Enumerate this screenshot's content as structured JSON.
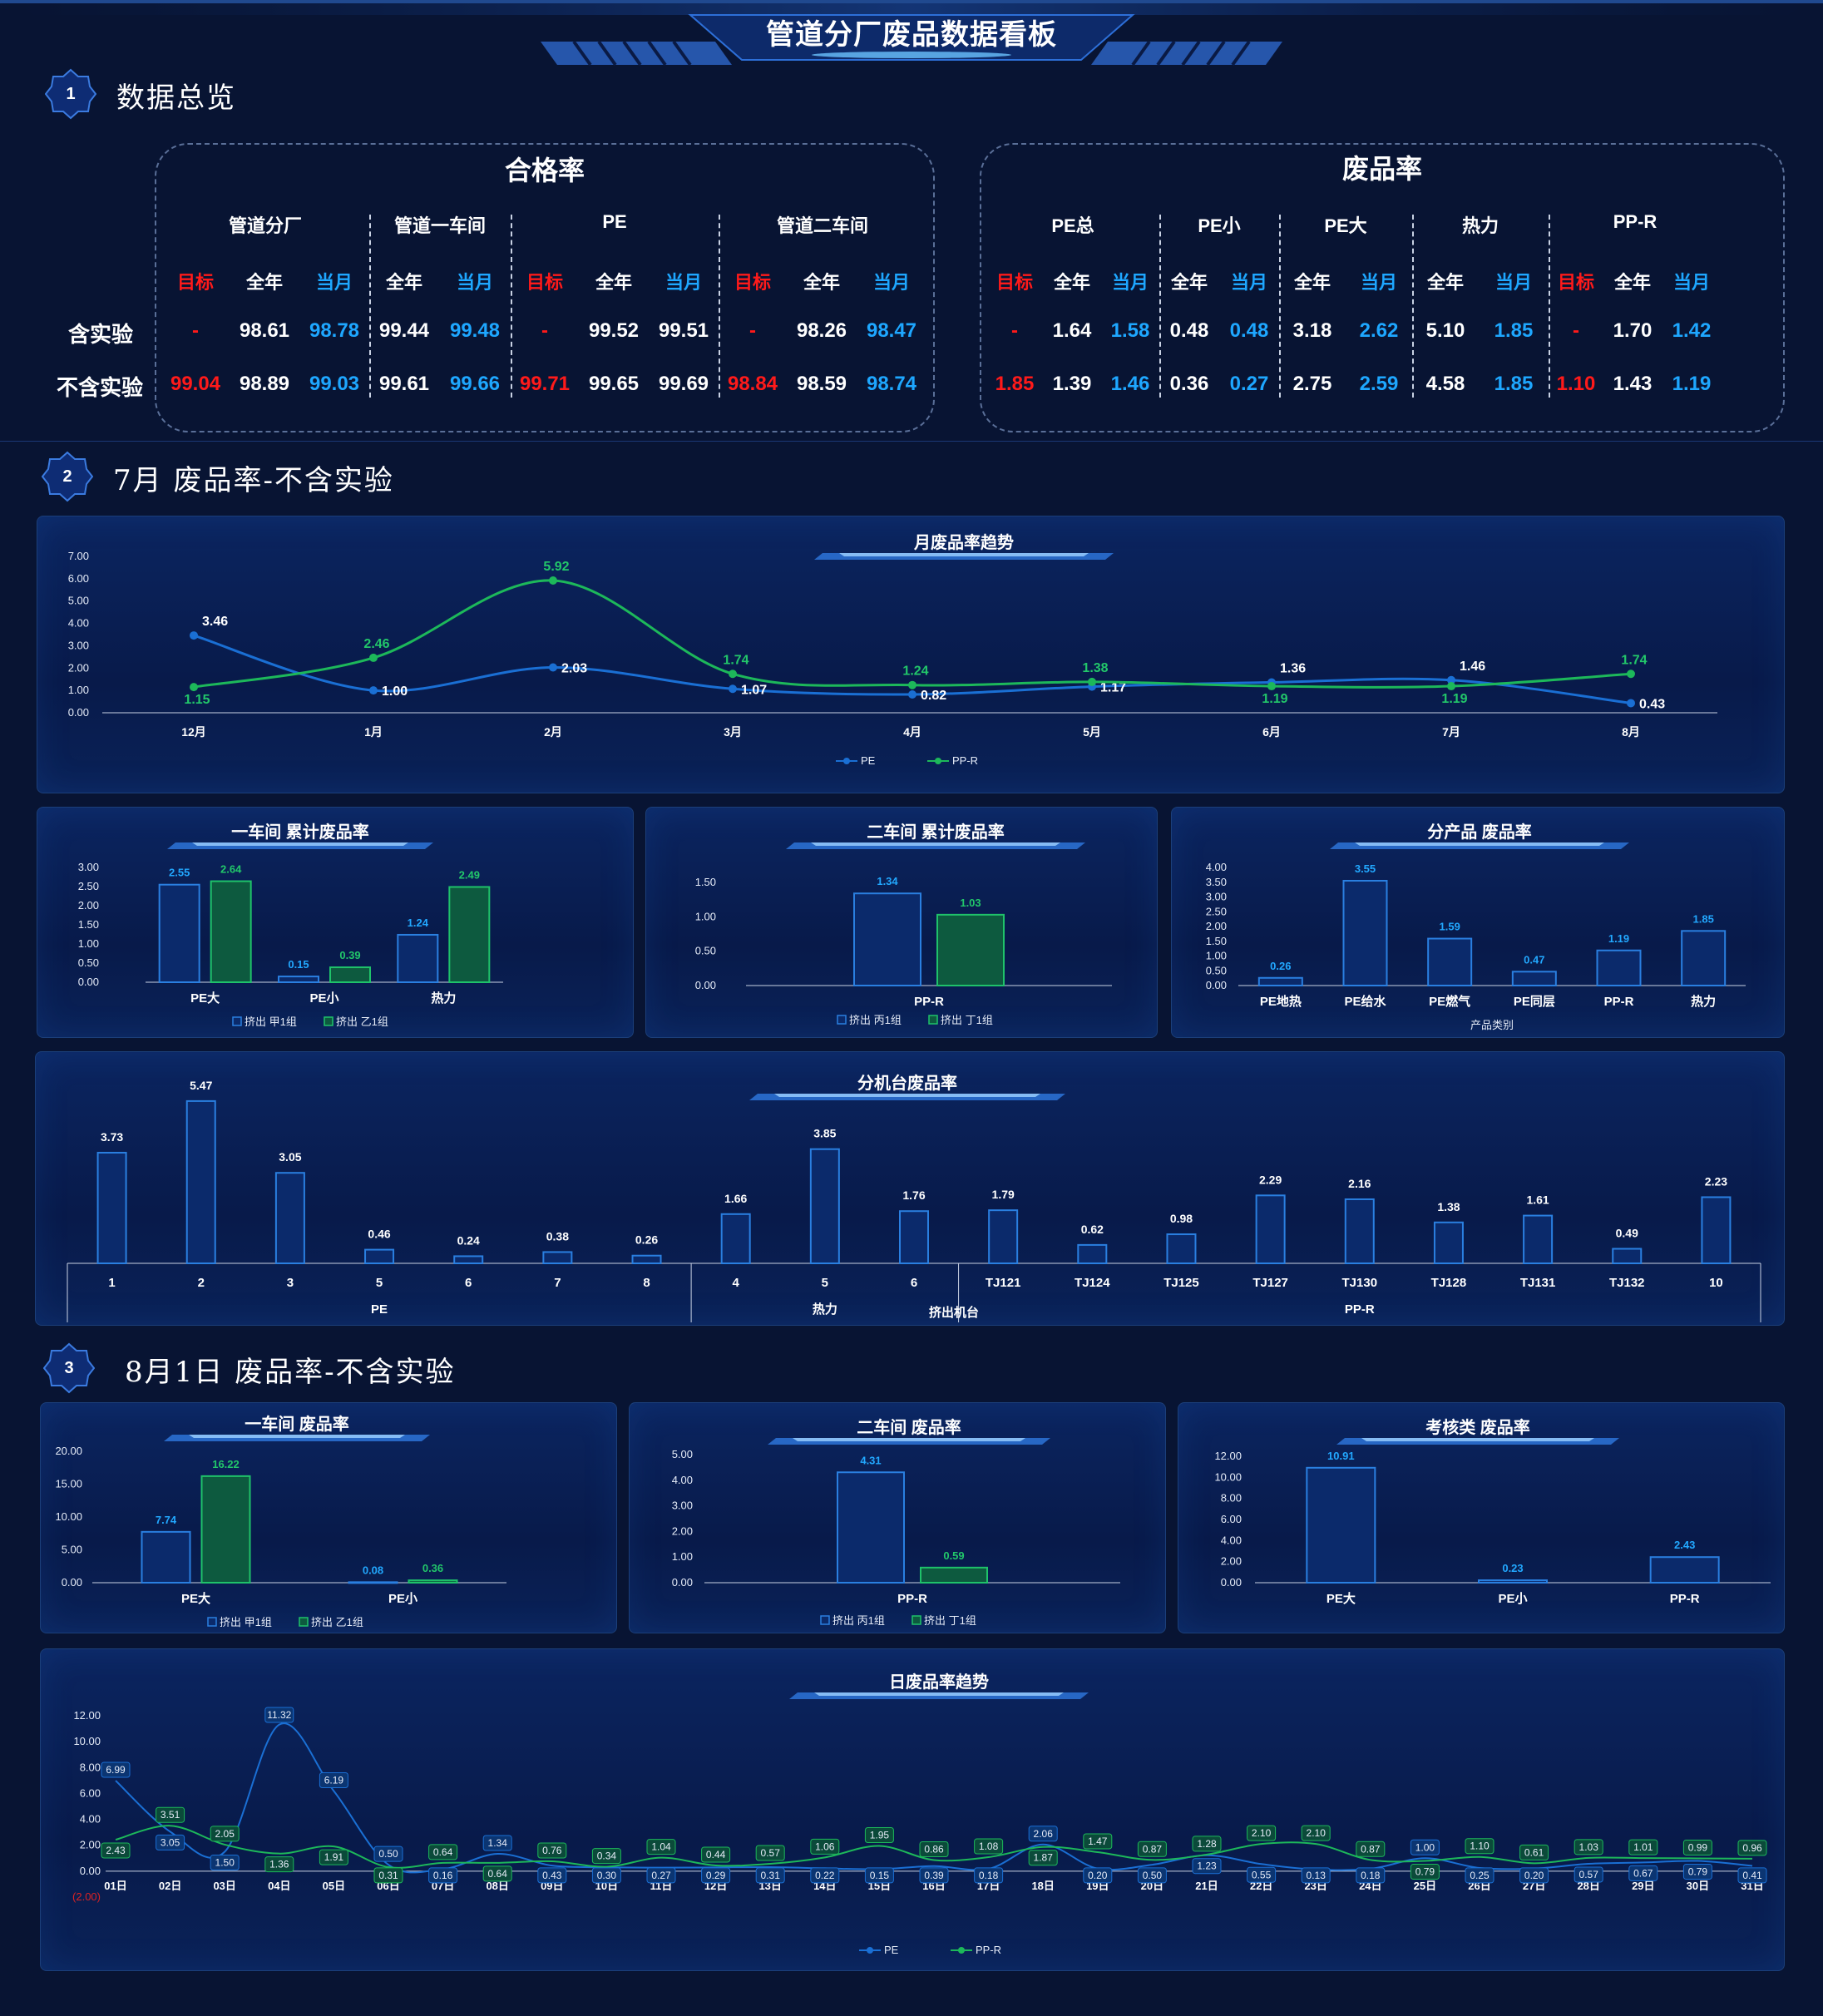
{
  "header": {
    "title": "管道分厂废品数据看板"
  },
  "sections": [
    {
      "num": "1",
      "title": "数据总览"
    },
    {
      "num": "2",
      "title": "7月 废品率-不含实验"
    },
    {
      "num": "3",
      "title": "8月1日  废品率-不含实验"
    }
  ],
  "overview": {
    "row_labels": [
      "含实验",
      "不含实验"
    ],
    "pass_rate": {
      "title": "合格率",
      "groups": [
        {
          "name": "管道分厂",
          "cols": [
            {
              "label": "目标",
              "cls": "red",
              "vals": [
                "-",
                "99.04"
              ]
            },
            {
              "label": "全年",
              "cls": "white",
              "vals": [
                "98.61",
                "98.89"
              ]
            },
            {
              "label": "当月",
              "cls": "blue",
              "vals": [
                "98.78",
                "99.03"
              ]
            }
          ]
        },
        {
          "name": "管道一车间",
          "cols": [
            {
              "label": "全年",
              "cls": "white",
              "vals": [
                "99.44",
                "99.61"
              ]
            },
            {
              "label": "当月",
              "cls": "blue",
              "vals": [
                "99.48",
                "99.66"
              ]
            }
          ]
        },
        {
          "name": "PE",
          "cols": [
            {
              "label": "目标",
              "cls": "red",
              "vals": [
                "-",
                "99.71"
              ]
            },
            {
              "label": "全年",
              "cls": "white",
              "vals": [
                "99.52",
                "99.65"
              ]
            },
            {
              "label": "当月",
              "cls": "white",
              "vals": [
                "99.51",
                "99.69"
              ]
            }
          ]
        },
        {
          "name": "管道二车间",
          "cols": [
            {
              "label": "目标",
              "cls": "red",
              "vals": [
                "-",
                "98.84"
              ]
            },
            {
              "label": "全年",
              "cls": "white",
              "vals": [
                "98.26",
                "98.59"
              ]
            },
            {
              "label": "当月",
              "cls": "blue",
              "vals": [
                "98.47",
                "98.74"
              ]
            }
          ]
        }
      ]
    },
    "scrap_rate": {
      "title": "废品率",
      "groups": [
        {
          "name": "PE总",
          "cols": [
            {
              "label": "目标",
              "cls": "red",
              "vals": [
                "-",
                "1.85"
              ]
            },
            {
              "label": "全年",
              "cls": "white",
              "vals": [
                "1.64",
                "1.39"
              ]
            },
            {
              "label": "当月",
              "cls": "blue",
              "vals": [
                "1.58",
                "1.46"
              ]
            }
          ]
        },
        {
          "name": "PE小",
          "cols": [
            {
              "label": "全年",
              "cls": "white",
              "vals": [
                "0.48",
                "0.36"
              ]
            },
            {
              "label": "当月",
              "cls": "blue",
              "vals": [
                "0.48",
                "0.27"
              ]
            }
          ]
        },
        {
          "name": "PE大",
          "cols": [
            {
              "label": "全年",
              "cls": "white",
              "vals": [
                "3.18",
                "2.75"
              ]
            },
            {
              "label": "当月",
              "cls": "blue",
              "vals": [
                "2.62",
                "2.59"
              ]
            }
          ]
        },
        {
          "name": "热力",
          "cols": [
            {
              "label": "全年",
              "cls": "white",
              "vals": [
                "5.10",
                "4.58"
              ]
            },
            {
              "label": "当月",
              "cls": "blue",
              "vals": [
                "1.85",
                "1.85"
              ]
            }
          ]
        },
        {
          "name": "PP-R",
          "cols": [
            {
              "label": "目标",
              "cls": "red",
              "vals": [
                "-",
                "1.10"
              ]
            },
            {
              "label": "全年",
              "cls": "white",
              "vals": [
                "1.70",
                "1.43"
              ]
            },
            {
              "label": "当月",
              "cls": "blue",
              "vals": [
                "1.42",
                "1.19"
              ]
            }
          ]
        }
      ]
    }
  },
  "colors": {
    "pe": "#1a6fd4",
    "ppr": "#1db85a",
    "bar_blue_fill": "#0b2a6b",
    "bar_blue_stroke": "#2a7fe0",
    "bar_green_fill": "#0d5a3f",
    "bar_green_stroke": "#1fc26a",
    "label_blue": "#22a8ff",
    "label_green": "#22c76a",
    "red": "#ff1a1a"
  },
  "chart_data": [
    {
      "id": "monthly",
      "type": "line",
      "title": "月废品率趋势",
      "categories": [
        "12月",
        "1月",
        "2月",
        "3月",
        "4月",
        "5月",
        "6月",
        "7月",
        "8月"
      ],
      "ylim": [
        0,
        7
      ],
      "yticks": [
        "0.00",
        "1.00",
        "2.00",
        "3.00",
        "4.00",
        "5.00",
        "6.00",
        "7.00"
      ],
      "series": [
        {
          "name": "PE",
          "values": [
            3.46,
            1.0,
            2.03,
            1.07,
            0.82,
            1.17,
            1.36,
            1.46,
            0.43
          ]
        },
        {
          "name": "PP-R",
          "values": [
            1.15,
            2.46,
            5.92,
            1.74,
            1.24,
            1.38,
            1.19,
            1.19,
            1.74
          ]
        }
      ]
    },
    {
      "id": "ws1",
      "type": "bar",
      "title": "一车间 累计废品率",
      "categories": [
        "PE大",
        "PE小",
        "热力"
      ],
      "ylim": [
        0,
        3
      ],
      "yticks": [
        "0.00",
        "0.50",
        "1.00",
        "1.50",
        "2.00",
        "2.50",
        "3.00"
      ],
      "series": [
        {
          "name": "挤出 甲1组",
          "values": [
            2.55,
            0.15,
            1.24
          ]
        },
        {
          "name": "挤出 乙1组",
          "values": [
            2.64,
            0.39,
            2.49
          ]
        }
      ]
    },
    {
      "id": "ws2",
      "type": "bar",
      "title": "二车间 累计废品率",
      "categories": [
        "PP-R"
      ],
      "ylim": [
        0,
        1.5
      ],
      "yticks": [
        "0.00",
        "0.50",
        "1.00",
        "1.50"
      ],
      "series": [
        {
          "name": "挤出 丙1组",
          "values": [
            1.34
          ]
        },
        {
          "name": "挤出 丁1组",
          "values": [
            1.03
          ]
        }
      ]
    },
    {
      "id": "prod",
      "type": "bar",
      "title": "分产品 废品率",
      "xlabel": "产品类别",
      "categories": [
        "PE地热",
        "PE给水",
        "PE燃气",
        "PE同层",
        "PP-R",
        "热力"
      ],
      "ylim": [
        0,
        4
      ],
      "yticks": [
        "0.00",
        "0.50",
        "1.00",
        "1.50",
        "2.00",
        "2.50",
        "3.00",
        "3.50",
        "4.00"
      ],
      "series": [
        {
          "values": [
            0.26,
            3.55,
            1.59,
            0.47,
            1.19,
            1.85
          ]
        }
      ]
    },
    {
      "id": "machine",
      "type": "bar",
      "title": "分机台废品率",
      "xlabel": "挤出机台",
      "groups": [
        {
          "name": "PE",
          "categories": [
            "1",
            "2",
            "3",
            "5",
            "6",
            "7",
            "8"
          ],
          "values": [
            3.73,
            5.47,
            3.05,
            0.46,
            0.24,
            0.38,
            0.26
          ]
        },
        {
          "name": "热力",
          "categories": [
            "4",
            "5",
            "6"
          ],
          "values": [
            1.66,
            3.85,
            1.76
          ]
        },
        {
          "name": "PP-R",
          "categories": [
            "TJ121",
            "TJ124",
            "TJ125",
            "TJ127",
            "TJ130",
            "TJ128",
            "TJ131",
            "TJ132",
            "10"
          ],
          "values": [
            1.79,
            0.62,
            0.98,
            2.29,
            2.16,
            1.38,
            1.61,
            0.49,
            2.23
          ]
        }
      ],
      "ylim": [
        0,
        6
      ]
    },
    {
      "id": "d_ws1",
      "type": "bar",
      "title": "一车间 废品率",
      "categories": [
        "PE大",
        "PE小"
      ],
      "ylim": [
        0,
        20
      ],
      "yticks": [
        "0.00",
        "5.00",
        "10.00",
        "15.00",
        "20.00"
      ],
      "series": [
        {
          "name": "挤出 甲1组",
          "values": [
            7.74,
            0.08
          ]
        },
        {
          "name": "挤出 乙1组",
          "values": [
            16.22,
            0.36
          ]
        }
      ]
    },
    {
      "id": "d_ws2",
      "type": "bar",
      "title": "二车间 废品率",
      "categories": [
        "PP-R"
      ],
      "ylim": [
        0,
        5
      ],
      "yticks": [
        "0.00",
        "1.00",
        "2.00",
        "3.00",
        "4.00",
        "5.00"
      ],
      "series": [
        {
          "name": "挤出 丙1组",
          "values": [
            4.31
          ]
        },
        {
          "name": "挤出 丁1组",
          "values": [
            0.59
          ]
        }
      ]
    },
    {
      "id": "d_kpi",
      "type": "bar",
      "title": "考核类 废品率",
      "categories": [
        "PE大",
        "PE小",
        "PP-R"
      ],
      "ylim": [
        0,
        12
      ],
      "yticks": [
        "0.00",
        "2.00",
        "4.00",
        "6.00",
        "8.00",
        "10.00",
        "12.00"
      ],
      "series": [
        {
          "values": [
            10.91,
            0.23,
            2.43
          ]
        }
      ]
    },
    {
      "id": "daily",
      "type": "line",
      "title": "日废品率趋势",
      "categories": [
        "01日",
        "02日",
        "03日",
        "04日",
        "05日",
        "06日",
        "07日",
        "08日",
        "09日",
        "10日",
        "11日",
        "12日",
        "13日",
        "14日",
        "15日",
        "16日",
        "17日",
        "18日",
        "19日",
        "20日",
        "21日",
        "22日",
        "23日",
        "24日",
        "25日",
        "26日",
        "27日",
        "28日",
        "29日",
        "30日",
        "31日"
      ],
      "ylim": [
        -2,
        12
      ],
      "yticks": [
        "(2.00)",
        "0.00",
        "2.00",
        "4.00",
        "6.00",
        "8.00",
        "10.00",
        "12.00"
      ],
      "series": [
        {
          "name": "PE",
          "values": [
            6.99,
            3.05,
            1.5,
            11.32,
            6.19,
            0.5,
            0.16,
            1.34,
            0.43,
            0.3,
            0.27,
            0.29,
            0.31,
            0.22,
            0.15,
            0.39,
            0.18,
            2.06,
            0.2,
            0.5,
            1.23,
            0.55,
            0.13,
            0.18,
            1.0,
            0.25,
            0.2,
            0.57,
            0.67,
            0.79,
            0.41
          ]
        },
        {
          "name": "PP-R",
          "values": [
            2.43,
            3.51,
            2.05,
            1.36,
            1.91,
            0.31,
            0.64,
            0.64,
            0.76,
            0.34,
            1.04,
            0.44,
            0.57,
            1.06,
            1.95,
            0.86,
            1.08,
            1.87,
            1.47,
            0.87,
            1.28,
            2.1,
            2.1,
            0.87,
            0.79,
            1.1,
            0.61,
            1.03,
            1.01,
            0.99,
            0.96
          ]
        }
      ]
    }
  ]
}
